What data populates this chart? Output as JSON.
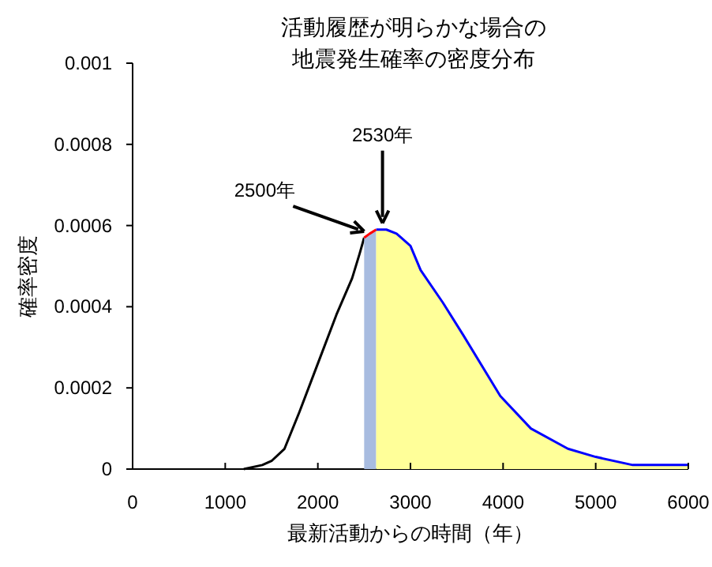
{
  "chart_data": {
    "type": "line",
    "title": "活動履歴が明らかな場合の地震発生確率の密度分布",
    "xlabel": "最新活動からの時間（年）",
    "ylabel": "確率密度",
    "xlim": [
      0,
      6000
    ],
    "xticks": [
      0,
      1000,
      2000,
      3000,
      4000,
      5000,
      6000
    ],
    "ylim": [
      0,
      0.001
    ],
    "yticks": [
      0,
      0.0002,
      0.0004,
      0.0006,
      0.0008,
      0.001
    ],
    "grid": false,
    "marker": "none",
    "series": [
      {
        "type": "line",
        "color": "#000000",
        "x": [
          1200,
          1400,
          1500,
          1640,
          1800,
          2000,
          2200,
          2370,
          2450,
          2500
        ],
        "values": [
          0,
          1e-05,
          2e-05,
          5e-05,
          0.00014,
          0.00026,
          0.00038,
          0.00047,
          0.00053,
          0.00057
        ]
      },
      {
        "type": "area",
        "color": "#a8bce0",
        "x": [
          2500,
          2560,
          2630
        ],
        "values": [
          0.00057,
          0.00058,
          0.00059
        ]
      },
      {
        "type": "area",
        "color": "#ffff99",
        "x": [
          2630,
          2740,
          2850,
          3000,
          3110,
          3350,
          3570,
          3970,
          4300,
          4700,
          5000,
          5400,
          6000
        ],
        "values": [
          0.00059,
          0.00059,
          0.00058,
          0.00055,
          0.00049,
          0.00041,
          0.00033,
          0.00018,
          0.0001,
          5e-05,
          3e-05,
          1e-05,
          1e-05
        ]
      },
      {
        "type": "line",
        "color": "#0000ff",
        "x": [
          2630,
          2740,
          2850,
          3000,
          3110,
          3350,
          3570,
          3970,
          4300,
          4700,
          5000,
          5400,
          6000
        ],
        "values": [
          0.00059,
          0.00059,
          0.00058,
          0.00055,
          0.00049,
          0.00041,
          0.00033,
          0.00018,
          0.0001,
          5e-05,
          3e-05,
          1e-05,
          1e-05
        ]
      },
      {
        "type": "line",
        "color": "#ff0000",
        "x": [
          2500,
          2560,
          2630
        ],
        "values": [
          0.00057,
          0.00058,
          0.00059
        ]
      }
    ],
    "annotations": [
      {
        "text": "2500年",
        "x": 2500,
        "y": 0.00057
      },
      {
        "text": "2530年",
        "x": 2630,
        "y": 0.00059
      }
    ]
  }
}
